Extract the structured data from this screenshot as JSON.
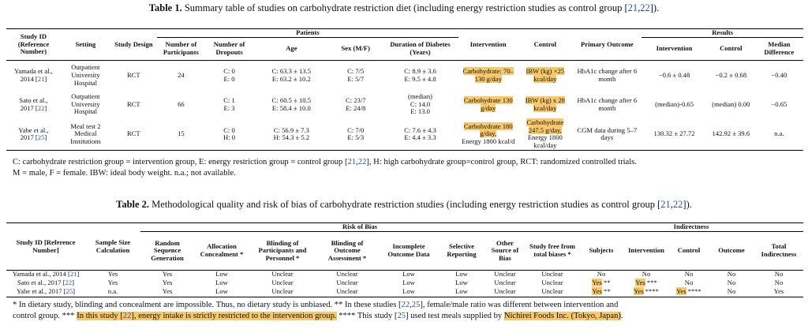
{
  "t1": {
    "label": "Table 1.",
    "caption_pre": "Summary table of studies on carbohydrate restriction diet (including energy restriction studies as control group [",
    "r1": "21",
    "sep": ",",
    "r2": "22",
    "caption_post": "]).",
    "head": {
      "study_id": "Study ID (Reference Number)",
      "setting": "Setting",
      "design": "Study Design",
      "patients": "Patients",
      "n_part": "Number of Participants",
      "n_drop": "Number of Dropouts",
      "age": "Age",
      "sex": "Sex (M/F)",
      "duration": "Duration of Diabetes (Years)",
      "intervention": "Intervention",
      "control": "Control",
      "primary": "Primary Outcome",
      "results": "Results",
      "r_int": "Intervention",
      "r_ctrl": "Control",
      "r_med": "Median Difference"
    },
    "rows": [
      {
        "id_a": "Yamada et al.,",
        "id_b": "2014 [",
        "ref": "21",
        "id_c": "]",
        "setting": "Outpatient University Hospital",
        "design": "RCT",
        "n": "24",
        "drop_a": "C: 0",
        "drop_b": "E: 0",
        "age_a": "C: 63.3 ± 13.5",
        "age_b": "E: 63.2 ± 10.2",
        "sex_a": "C: 7/5",
        "sex_b": "E: 5/7",
        "dur_a": "C: 8.9 ± 3.6",
        "dur_b": "E: 9.5 ± 4.8",
        "int_hl": "Carbohydrate: 70–130 g/day",
        "int_extra": "",
        "ctrl_hl": "IBW (kg) ×25 kcal/day",
        "ctrl_extra": "",
        "primary": "HbA1c change after 6 month",
        "r_int": "−0.6 ± 0.48",
        "r_ctrl": "−0.2 ± 0.68",
        "r_med": "−0.40"
      },
      {
        "id_a": "Sato et al.,",
        "id_b": "2017 [",
        "ref": "22",
        "id_c": "]",
        "setting": "Outpatient University Hospital",
        "design": "RCT",
        "n": "66",
        "drop_a": "C: 1",
        "drop_b": "E: 3",
        "age_a": "C: 60.5 ± 10.5",
        "age_b": "E: 58.4 ± 10.0",
        "sex_a": "C: 23/7",
        "sex_b": "E: 24/8",
        "dur_a": "(median)",
        "dur_b": "C: 14.0",
        "dur_c": "E: 13.0",
        "int_hl": "Carbohydrate 130 g/day",
        "int_extra": "",
        "ctrl_hl": "IBW (kg) x 28 kcal/day",
        "ctrl_extra": "",
        "primary": "HbA1c change after 6 month",
        "r_int": "(median)-0.65",
        "r_ctrl": "(median) 0.00",
        "r_med": "−0.65"
      },
      {
        "id_a": "Yabe et al.,",
        "id_b": "2017 [",
        "ref": "25",
        "id_c": "]",
        "setting": "Meal test 2 Medical Institutions",
        "design": "RCT",
        "n": "15",
        "drop_a": "C: 0",
        "drop_b": "H: 0",
        "age_a": "C: 56.9 ± 7.3",
        "age_b": "H: 54.3 ± 5.2",
        "sex_a": "C: 7/0",
        "sex_b": "E: 5/3",
        "dur_a": "C: 7.6 ± 4.3",
        "dur_b": "E: 4.4 ± 3.3",
        "int_hl": "Carbohydrate 180 g/day,",
        "int_extra": "Energy 1800 kcal/d",
        "ctrl_hl": "Carbohydrate 247.5 g/day,",
        "ctrl_extra": "Energy 1800 kcal/day",
        "primary": "CGM data during 5–7 days",
        "r_int": "130.32 ± 27.72",
        "r_ctrl": "142.92 ± 39.6",
        "r_med": "n.a."
      }
    ],
    "note_l1a": "C: carbohydrate restriction group = intervention group, E: energy restriction group = control group [",
    "note_r1": "21",
    "note_sep": ",",
    "note_r2": "22",
    "note_l1b": "], H: high carbohydrate group=control group, RCT: randomized controlled trials.",
    "note_l2": "M = male, F = female. IBW: ideal body weight. n.a.; not available."
  },
  "t2": {
    "label": "Table 2.",
    "caption_pre": "Methodological quality and risk of bias of carbohydrate restriction studies (including energy restriction studies as control group [",
    "r1": "21",
    "sep": ",",
    "r2": "22",
    "caption_post": "]).",
    "head": {
      "study_id": "Study ID [Reference Number]",
      "sample": "Sample Size Calculation",
      "risk": "Risk of Bias",
      "indirect": "Indirectness",
      "rsg": "Random Sequence Generation",
      "alloc": "Allocation Concealment *",
      "blind_p": "Blinding of Participants and Personnel *",
      "blind_o": "Blinding of Outcome Assessment *",
      "incomplete": "Incomplete Outcome Data",
      "selective": "Selective Reporting",
      "other": "Other Source of Bias",
      "free": "Study free from total biases *",
      "subjects": "Subjects",
      "intervention": "Intervention",
      "control": "Control",
      "outcome": "Outcome",
      "total": "Total Indirectness"
    },
    "rows": [
      {
        "id": "Yamada et al., 2014 [",
        "ref": "21",
        "id_c": "]",
        "sample": "Yes",
        "rsg": "Yes",
        "alloc": "Low",
        "blind_p": "Unclear",
        "blind_o": "Unclear",
        "incomplete": "Low",
        "selective": "Low",
        "other": "Unclear",
        "free": "Unclear",
        "subjects": "No",
        "subjects_mark": "",
        "intervention": "No",
        "intervention_mark": "",
        "control": "No",
        "control_mark": "",
        "outcome": "No",
        "total": "No"
      },
      {
        "id": "Sato et al., 2017 [",
        "ref": "22",
        "id_c": "]",
        "sample": "Yes",
        "rsg": "Yes",
        "alloc": "Low",
        "blind_p": "Unclear",
        "blind_o": "Unclear",
        "incomplete": "Low",
        "selective": "Low",
        "other": "Unclear",
        "free": "Unclear",
        "subjects": "Yes",
        "subjects_mark": " **",
        "intervention": "Yes",
        "intervention_mark": " ***",
        "control": "No",
        "control_mark": "",
        "outcome": "No",
        "total": "No"
      },
      {
        "id": "Yabe et al., 2017 [",
        "ref": "25",
        "id_c": "]",
        "sample": "n.a.",
        "rsg": "Yes",
        "alloc": "Low",
        "blind_p": "Unclear",
        "blind_o": "Unclear",
        "incomplete": "Low",
        "selective": "Low",
        "other": "Unclear",
        "free": "Unclear",
        "subjects": "Yes",
        "subjects_mark": " **",
        "intervention": "Yes",
        "intervention_mark": " ****",
        "control": "Yes",
        "control_mark": " ****",
        "outcome": "No",
        "total": "Yes"
      }
    ],
    "note_a": "* In dietary study, blinding and concealment are impossible. Thus, no dietary study is unbiased. ** In these studies [",
    "note_r1": "22",
    "note_sep": ",",
    "note_r2": "25",
    "note_b": "], female/male ratio was different between intervention and",
    "note_c": "control group. *** ",
    "note_hl1_pre": "In this study [",
    "note_r3": "22",
    "note_hl1_post": "], energy intake is strictly restricted to the intervention group.",
    "note_d": " **** This study [",
    "note_r4": "25",
    "note_e": "] used test meals supplied by ",
    "note_hl2": "Nichirei Foods Inc. (Tokyo, Japan)",
    "note_f": "."
  }
}
